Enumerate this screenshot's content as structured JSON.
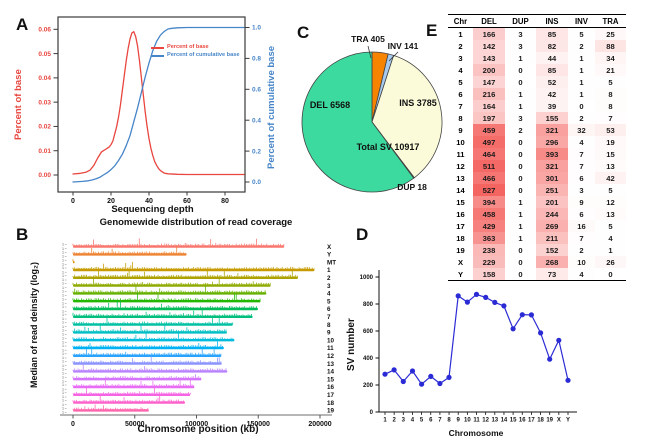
{
  "panel_labels": {
    "a": "A",
    "b": "B",
    "c": "C",
    "d": "D",
    "e": "E"
  },
  "chart_data": [
    {
      "panel": "A",
      "type": "line",
      "title": "",
      "xlabel": "Sequencing depth",
      "ylabel": "Percent of base",
      "ylabel_right": "Percent of cumulative base",
      "x_ticks": [
        0,
        20,
        40,
        60,
        80
      ],
      "left_ticks": [
        0,
        0.01,
        0.02,
        0.03,
        0.04,
        0.05,
        0.06
      ],
      "right_ticks": [
        0,
        0.2,
        0.4,
        0.6,
        0.8,
        1.0
      ],
      "xlim": [
        -8,
        95
      ],
      "ylim_left": [
        0,
        0.06
      ],
      "ylim_right": [
        0,
        1.0
      ],
      "legend_position": "top-center-inside",
      "series": [
        {
          "name": "Percent of base",
          "axis": "left",
          "color": "#E8463F",
          "x": [
            0,
            4,
            7,
            9,
            11,
            13,
            15,
            16,
            17,
            18,
            19,
            20,
            21,
            22,
            23,
            24,
            25,
            26,
            27,
            28,
            29,
            30,
            31,
            32,
            33,
            34,
            35,
            36,
            37,
            38,
            39,
            40,
            41,
            42,
            43,
            44,
            45,
            46,
            48,
            50,
            55,
            60,
            70,
            80,
            90
          ],
          "y": [
            0.0004,
            0.0007,
            0.0012,
            0.002,
            0.004,
            0.007,
            0.0095,
            0.01,
            0.0105,
            0.011,
            0.0115,
            0.0125,
            0.014,
            0.017,
            0.02,
            0.024,
            0.029,
            0.035,
            0.041,
            0.047,
            0.052,
            0.056,
            0.0585,
            0.059,
            0.057,
            0.053,
            0.047,
            0.04,
            0.033,
            0.026,
            0.02,
            0.015,
            0.011,
            0.008,
            0.0055,
            0.004,
            0.0027,
            0.0018,
            0.0008,
            0.0005,
            0.0003,
            0.0002,
            0.0002,
            0.0002,
            0.0002
          ]
        },
        {
          "name": "Percent of cumulative base",
          "axis": "right",
          "color": "#4685C8",
          "x": [
            0,
            5,
            8,
            10,
            12,
            14,
            16,
            18,
            20,
            22,
            24,
            26,
            28,
            30,
            32,
            34,
            36,
            38,
            40,
            42,
            44,
            46,
            48,
            50,
            52,
            55,
            60,
            70,
            80,
            90
          ],
          "y": [
            0.0,
            0.004,
            0.008,
            0.013,
            0.02,
            0.03,
            0.045,
            0.06,
            0.08,
            0.105,
            0.14,
            0.18,
            0.235,
            0.3,
            0.39,
            0.48,
            0.58,
            0.68,
            0.77,
            0.85,
            0.91,
            0.95,
            0.975,
            0.99,
            0.995,
            0.998,
            1.0,
            1.0,
            1.0,
            1.0
          ]
        }
      ]
    },
    {
      "panel": "B",
      "type": "coverage-tracks",
      "title": "Genomewide distribution of read coverage",
      "xlabel": "Chromsome position (kb)",
      "ylabel": "Median of read deinsity (log₂)",
      "x_ticks": [
        0,
        50000,
        100000,
        150000,
        200000
      ],
      "xlim": [
        0,
        200000
      ],
      "mini_tick_label": "1",
      "tracks": [
        {
          "label": "X",
          "length_kb": 171000,
          "color": "#F8766D"
        },
        {
          "label": "Y",
          "length_kb": 92000,
          "color": "#EE8333"
        },
        {
          "label": "MT",
          "length_kb": 16,
          "color": "#DC8F00"
        },
        {
          "label": "1",
          "length_kb": 195500,
          "color": "#C79A00"
        },
        {
          "label": "2",
          "length_kb": 182100,
          "color": "#AEA200"
        },
        {
          "label": "3",
          "length_kb": 160000,
          "color": "#8FAA00"
        },
        {
          "label": "4",
          "length_kb": 156500,
          "color": "#66B100"
        },
        {
          "label": "5",
          "length_kb": 151800,
          "color": "#24B700"
        },
        {
          "label": "6",
          "length_kb": 149700,
          "color": "#00BB57"
        },
        {
          "label": "7",
          "length_kb": 145400,
          "color": "#00BE7D"
        },
        {
          "label": "8",
          "length_kb": 129400,
          "color": "#00C0A4"
        },
        {
          "label": "9",
          "length_kb": 124600,
          "color": "#00BFC4"
        },
        {
          "label": "10",
          "length_kb": 130700,
          "color": "#00BBDC"
        },
        {
          "label": "11",
          "length_kb": 122100,
          "color": "#00B2F3"
        },
        {
          "label": "12",
          "length_kb": 120100,
          "color": "#29A3FF"
        },
        {
          "label": "13",
          "length_kb": 120400,
          "color": "#8B93FF"
        },
        {
          "label": "14",
          "length_kb": 124900,
          "color": "#B983FF"
        },
        {
          "label": "15",
          "length_kb": 104000,
          "color": "#D575FE"
        },
        {
          "label": "16",
          "length_kb": 98200,
          "color": "#E86DF4"
        },
        {
          "label": "17",
          "length_kb": 95000,
          "color": "#F564E3"
        },
        {
          "label": "18",
          "length_kb": 90700,
          "color": "#FD61CC"
        },
        {
          "label": "19",
          "length_kb": 61400,
          "color": "#FF65AC"
        }
      ]
    },
    {
      "panel": "C",
      "type": "pie",
      "center_label": "Total SV 10917",
      "total": 10917,
      "slices": [
        {
          "key": "TRA",
          "label": "TRA 405",
          "value": 405,
          "color": "#F78400"
        },
        {
          "key": "INV",
          "label": "INV 141",
          "value": 141,
          "color": "#A6C9EE"
        },
        {
          "key": "INS",
          "label": "INS 3785",
          "value": 3785,
          "color": "#FBFBDA"
        },
        {
          "key": "DUP",
          "label": "DUP 18",
          "value": 18,
          "color": "#B0B0B0"
        },
        {
          "key": "DEL",
          "label": "DEL 6568",
          "value": 6568,
          "color": "#3CDA9F"
        }
      ]
    },
    {
      "panel": "D",
      "type": "line",
      "xlabel": "Chromosome",
      "ylabel": "SV number",
      "categories": [
        "1",
        "2",
        "3",
        "4",
        "5",
        "6",
        "7",
        "8",
        "9",
        "10",
        "11",
        "12",
        "13",
        "14",
        "15",
        "16",
        "17",
        "18",
        "19",
        "X",
        "Y"
      ],
      "values": [
        280,
        312,
        226,
        304,
        206,
        264,
        211,
        256,
        860,
        814,
        871,
        849,
        812,
        786,
        616,
        721,
        719,
        586,
        391,
        531,
        235
      ],
      "y_ticks": [
        0,
        200,
        400,
        600,
        800,
        1000
      ],
      "ylim": [
        0,
        1000
      ],
      "color": "#2B2BD5"
    },
    {
      "panel": "E",
      "type": "table",
      "headers": [
        "Chr",
        "DEL",
        "DUP",
        "INS",
        "INV",
        "TRA"
      ],
      "rows": [
        [
          "1",
          166,
          3,
          85,
          5,
          25
        ],
        [
          "2",
          142,
          3,
          82,
          2,
          88
        ],
        [
          "3",
          143,
          1,
          44,
          1,
          34
        ],
        [
          "4",
          200,
          0,
          85,
          1,
          21
        ],
        [
          "5",
          147,
          0,
          52,
          1,
          5
        ],
        [
          "6",
          216,
          1,
          42,
          1,
          8
        ],
        [
          "7",
          164,
          1,
          39,
          0,
          8
        ],
        [
          "8",
          197,
          3,
          155,
          2,
          7
        ],
        [
          "9",
          459,
          2,
          321,
          32,
          53
        ],
        [
          "10",
          497,
          0,
          296,
          4,
          19
        ],
        [
          "11",
          464,
          0,
          393,
          7,
          15
        ],
        [
          "12",
          511,
          0,
          321,
          7,
          13
        ],
        [
          "13",
          466,
          0,
          301,
          6,
          42
        ],
        [
          "14",
          527,
          0,
          251,
          3,
          5
        ],
        [
          "15",
          394,
          1,
          201,
          9,
          12
        ],
        [
          "16",
          458,
          1,
          244,
          6,
          13
        ],
        [
          "17",
          429,
          1,
          269,
          16,
          5
        ],
        [
          "18",
          363,
          1,
          211,
          7,
          4
        ],
        [
          "19",
          238,
          0,
          152,
          2,
          1
        ],
        [
          "X",
          229,
          0,
          268,
          10,
          26
        ],
        [
          "Y",
          158,
          0,
          73,
          4,
          0
        ]
      ],
      "heat_color": "#F35A56",
      "heat_scale_max": 560
    }
  ]
}
